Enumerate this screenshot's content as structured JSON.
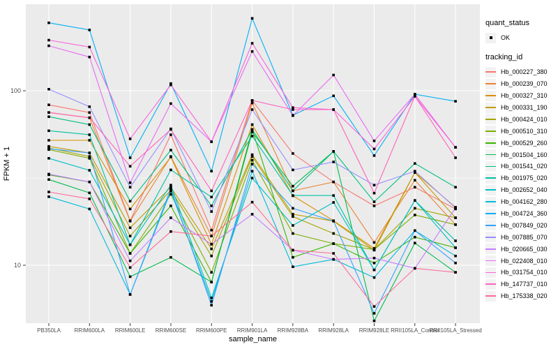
{
  "figure": {
    "background": "#FFFFFF",
    "panel_background": "#EBEBEB",
    "grid_color": "#FFFFFF",
    "axis_text_color": "#4D4D4D",
    "tick_mark_color": "#333333",
    "point_color": "#000000"
  },
  "axes": {
    "x_title": "sample_name",
    "y_title": "FPKM + 1",
    "y_scale": "log10",
    "y_major_ticks": [
      {
        "label": "100",
        "value": 100
      },
      {
        "label": "10",
        "value": 10
      }
    ],
    "y_minor_gridlines": [
      31.6
    ],
    "y_range": [
      4.7,
      302
    ]
  },
  "legend": {
    "quant_title": "quant_status",
    "quant_items": [
      {
        "label": "OK",
        "symbol": "black-point"
      }
    ],
    "tracking_title": "tracking_id"
  },
  "chart_data": {
    "type": "line",
    "title": "",
    "xlabel": "sample_name",
    "ylabel": "FPKM + 1",
    "grid": true,
    "legend_position": "right",
    "ylim": [
      4.7,
      302
    ],
    "categories": [
      "PB350LA",
      "RRIM600LA",
      "RRIM600LE",
      "RRIM600SE",
      "RRIM600PE",
      "RRIM901LA",
      "RRIM928BA",
      "RRIM928LA",
      "RRIM928LE",
      "RRII105LA_Control",
      "RRII105LA_Stressed"
    ],
    "series": [
      {
        "name": "Hb_000227_380",
        "color": "#F8766D",
        "values": [
          83,
          75,
          18,
          56,
          15.9,
          88,
          43.7,
          30,
          21.9,
          28,
          21
        ]
      },
      {
        "name": "Hb_000239_070",
        "color": "#EA8331",
        "values": [
          75,
          70,
          17.9,
          42,
          14.7,
          85,
          26.7,
          30,
          13.5,
          30.7,
          17.1
        ]
      },
      {
        "name": "Hb_000327_310",
        "color": "#D89000",
        "values": [
          52,
          52,
          21,
          41.7,
          13.2,
          64,
          25,
          18,
          12.5,
          34,
          21.5
        ]
      },
      {
        "name": "Hb_000331_190",
        "color": "#C09B00",
        "values": [
          48,
          44,
          16.4,
          28,
          12.4,
          43,
          19.6,
          17.9,
          12.2,
          34,
          18.7
        ]
      },
      {
        "name": "Hb_000424_010",
        "color": "#A3A500",
        "values": [
          47,
          42,
          14.7,
          27,
          11.3,
          42,
          19,
          15.2,
          12.3,
          21.2,
          18.7
        ]
      },
      {
        "name": "Hb_000510_310",
        "color": "#7CAE00",
        "values": [
          46,
          41,
          11.7,
          25.5,
          9.1,
          40,
          15.2,
          13.3,
          12.3,
          19.4,
          17.1
        ]
      },
      {
        "name": "Hb_000529_260",
        "color": "#39B600",
        "values": [
          33,
          30,
          11.7,
          21.9,
          8,
          60,
          11.1,
          13.3,
          10.3,
          14.5,
          12.6
        ]
      },
      {
        "name": "Hb_001504_160",
        "color": "#00BB4E",
        "values": [
          31,
          26,
          8.6,
          11.1,
          8,
          58,
          28.4,
          44.9,
          4.8,
          13.4,
          9.1
        ]
      },
      {
        "name": "Hb_001541_020",
        "color": "#00BF7D",
        "values": [
          71,
          64,
          23.3,
          45.7,
          21.9,
          60,
          26.7,
          44.9,
          23.1,
          38.3,
          28
        ]
      },
      {
        "name": "Hb_001975_020",
        "color": "#00C1A3",
        "values": [
          59,
          56,
          13.1,
          35.2,
          24.6,
          55,
          25.1,
          25.1,
          9.4,
          23.5,
          13.8
        ]
      },
      {
        "name": "Hb_002652_040",
        "color": "#00BFC4",
        "values": [
          41,
          35,
          13.1,
          28.8,
          6.5,
          31.6,
          16.9,
          22.9,
          9.4,
          23.5,
          12.6
        ]
      },
      {
        "name": "Hb_004162_280",
        "color": "#00BBDA",
        "values": [
          24.7,
          21,
          6.8,
          26.6,
          6.2,
          34.6,
          9.8,
          10.8,
          8.5,
          15.8,
          11.3
        ]
      },
      {
        "name": "Hb_004724_360",
        "color": "#00B0F6",
        "values": [
          245,
          223,
          41.3,
          110,
          34.6,
          260,
          72.4,
          93.5,
          42.5,
          95.5,
          87
        ]
      },
      {
        "name": "Hb_007849_020",
        "color": "#35A2FF",
        "values": [
          46.5,
          44,
          6.8,
          27.5,
          5.9,
          38,
          21.2,
          17.9,
          5.3,
          15.8,
          10.3
        ]
      },
      {
        "name": "Hb_007885_070",
        "color": "#9590FF",
        "values": [
          102,
          81,
          28,
          60.5,
          20.3,
          78,
          35.2,
          39.1,
          28.8,
          34.6,
          21.3
        ]
      },
      {
        "name": "Hb_020665_030",
        "color": "#C77CFF",
        "values": [
          33.3,
          30,
          10.6,
          18.7,
          13.2,
          19.6,
          12.2,
          10.8,
          11,
          9.6,
          21.3
        ]
      },
      {
        "name": "Hb_022408_010",
        "color": "#E76BF3",
        "values": [
          181,
          156,
          29.7,
          84.4,
          51,
          168,
          72,
          123,
          51.6,
          95.5,
          47.4
        ]
      },
      {
        "name": "Hb_031754_010",
        "color": "#FA62DB",
        "values": [
          195,
          178,
          53,
          108,
          51,
          187,
          80,
          78,
          46.4,
          93,
          47.4
        ]
      },
      {
        "name": "Hb_147737_010",
        "color": "#FF62BC",
        "values": [
          75,
          70,
          36.9,
          60,
          26.7,
          88,
          78,
          78,
          25.9,
          93,
          41.3
        ]
      },
      {
        "name": "Hb_175338_020",
        "color": "#FF6A98",
        "values": [
          26.3,
          24,
          9.7,
          15.6,
          14.7,
          23,
          12.2,
          11.7,
          5.8,
          9.6,
          9.1
        ]
      }
    ]
  }
}
